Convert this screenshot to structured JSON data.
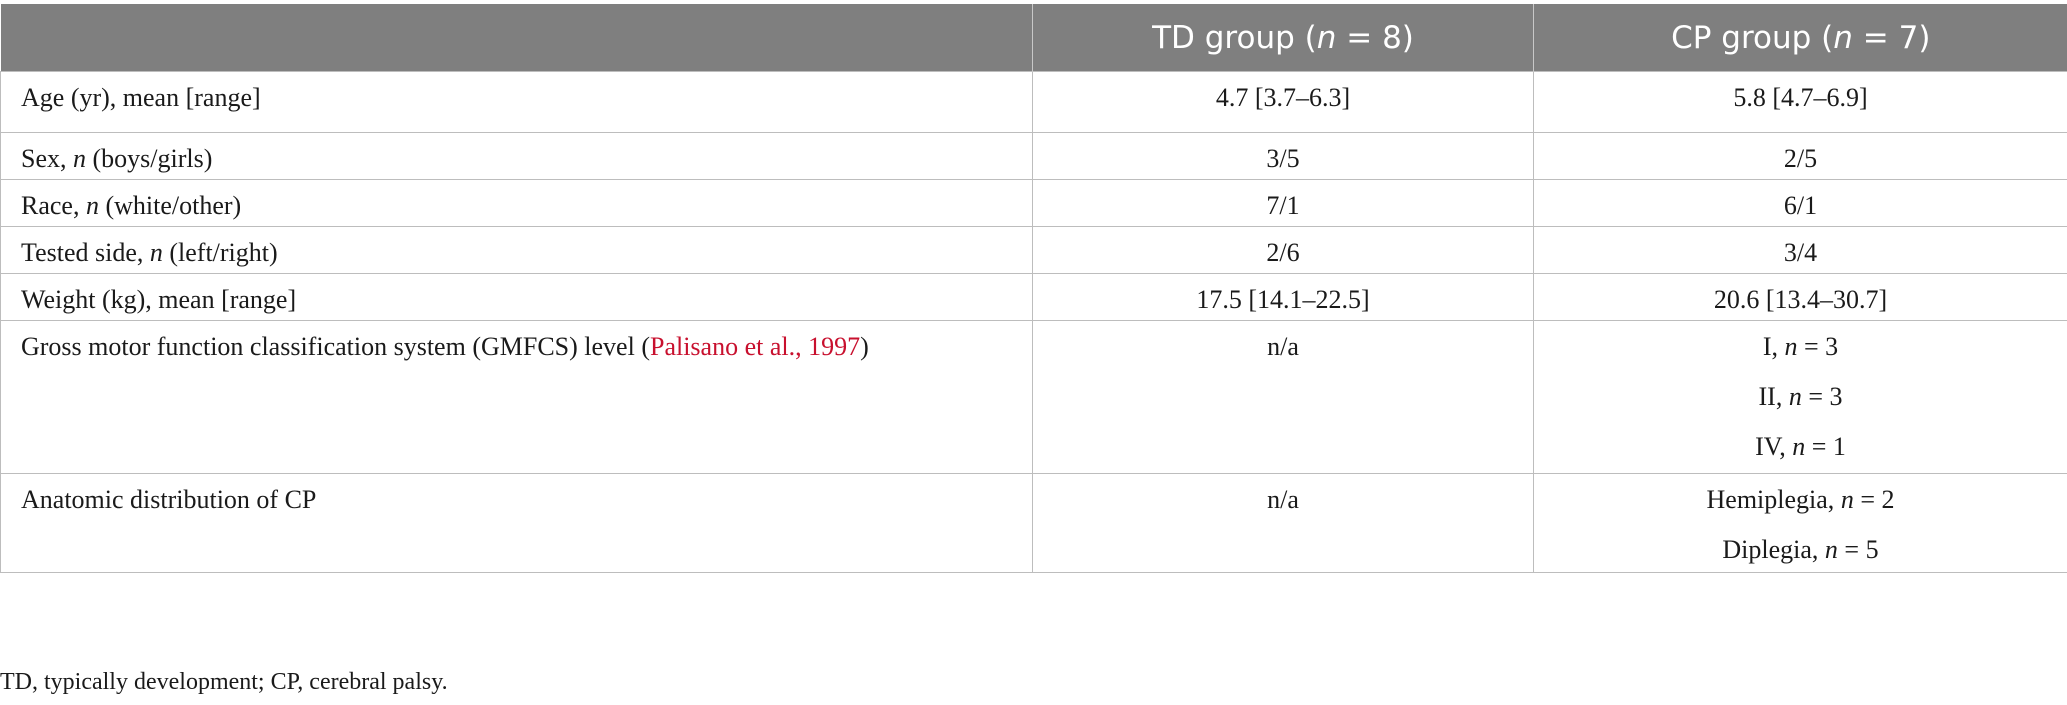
{
  "header": {
    "col1": "",
    "col2_prefix": "TD group (",
    "col2_n": "n",
    "col2_suffix": " = 8)",
    "col3_prefix": "CP group (",
    "col3_n": "n",
    "col3_suffix": " = 7)"
  },
  "rows": [
    {
      "label": "Age (yr), mean [range]",
      "td": "4.7 [3.7–6.3]",
      "cp": "5.8 [4.7–6.9]"
    },
    {
      "label_pre": "Sex, ",
      "label_n": "n",
      "label_post": " (boys/girls)",
      "td": "3/5",
      "cp": "2/5"
    },
    {
      "label_pre": "Race, ",
      "label_n": "n",
      "label_post": " (white/other)",
      "td": "7/1",
      "cp": "6/1"
    },
    {
      "label_pre": "Tested side, ",
      "label_n": "n",
      "label_post": " (left/right)",
      "td": "2/6",
      "cp": "3/4"
    },
    {
      "label": "Weight (kg), mean [range]",
      "td": "17.5 [14.1–22.5]",
      "cp": "20.6 [13.4–30.7]"
    },
    {
      "label_pre": "Gross motor function classification system (GMFCS) level (",
      "label_cite": "Palisano et al., 1997",
      "label_post": ")",
      "td": "n/a",
      "cp_lines": [
        {
          "pre": "I, ",
          "n": "n",
          "post": " = 3"
        },
        {
          "pre": "II, ",
          "n": "n",
          "post": " = 3"
        },
        {
          "pre": "IV, ",
          "n": "n",
          "post": " = 1"
        }
      ]
    },
    {
      "label": "Anatomic distribution of CP",
      "td": "n/a",
      "cp_lines": [
        {
          "pre": "Hemiplegia, ",
          "n": "n",
          "post": " = 2"
        },
        {
          "pre": "Diplegia, ",
          "n": "n",
          "post": " = 5"
        }
      ]
    }
  ],
  "footnote": "TD, typically development; CP, cerebral palsy.",
  "colors": {
    "header_bg": "#7f7f7f",
    "citation": "#c8102e",
    "border": "#bdbdbd"
  }
}
